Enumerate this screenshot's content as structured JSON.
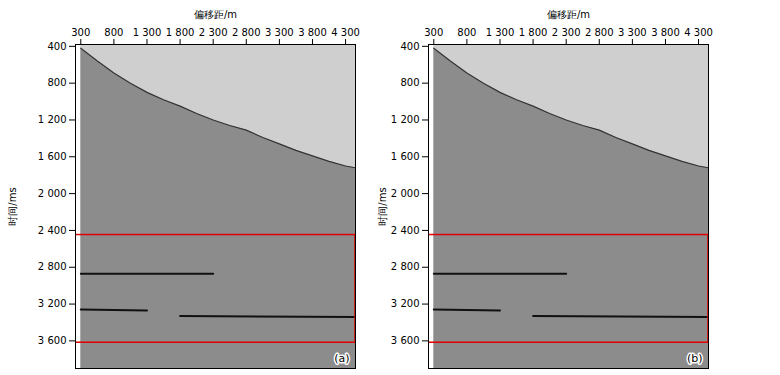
{
  "chart_data": [
    {
      "type": "area",
      "annotation": "(a)",
      "xlabel": "偏移距/m",
      "ylabel": "时间/ms",
      "xlim": [
        220,
        4450
      ],
      "ylim": [
        380,
        3900
      ],
      "xticks": [
        300,
        800,
        {
          "value": 1300,
          "label": "1 300"
        },
        {
          "value": 1800,
          "label": "1 800"
        },
        {
          "value": 2300,
          "label": "2 300"
        },
        {
          "value": 2800,
          "label": "2 800"
        },
        {
          "value": 3300,
          "label": "3 300"
        },
        {
          "value": 3800,
          "label": "3 800"
        },
        {
          "value": 4300,
          "label": "4 300"
        }
      ],
      "yticks": [
        400,
        800,
        {
          "value": 1200,
          "label": "1 200"
        },
        {
          "value": 1600,
          "label": "1 600"
        },
        {
          "value": 2000,
          "label": "2 000"
        },
        {
          "value": 2400,
          "label": "2 400"
        },
        {
          "value": 2800,
          "label": "2 800"
        },
        {
          "value": 3200,
          "label": "3 200"
        },
        {
          "value": 3600,
          "label": "3 600"
        }
      ],
      "x": [
        300,
        550,
        800,
        1050,
        1300,
        1550,
        1800,
        2050,
        2300,
        2550,
        2800,
        3050,
        3300,
        3550,
        3800,
        4050,
        4300,
        4450
      ],
      "values": [
        420,
        560,
        690,
        800,
        900,
        980,
        1050,
        1130,
        1200,
        1260,
        1310,
        1390,
        1460,
        1530,
        1590,
        1650,
        1700,
        1720
      ],
      "color": "#8c8c8c",
      "events": [
        {
          "x": [
            300,
            2300
          ],
          "values": [
            2870,
            2870
          ]
        },
        {
          "x": [
            1800,
            4450
          ],
          "values": [
            3330,
            3340
          ]
        },
        {
          "x": [
            300,
            1300
          ],
          "values": [
            3260,
            3270
          ]
        }
      ],
      "highlight_box": {
        "xlim": [
          220,
          4450
        ],
        "ylim": [
          2450,
          3620
        ],
        "color": "#e00000"
      }
    },
    {
      "type": "area",
      "annotation": "(b)",
      "xlabel": "偏移距/m",
      "ylabel": "时间/ms",
      "xlim": [
        220,
        4450
      ],
      "ylim": [
        380,
        3900
      ],
      "xticks": [
        300,
        800,
        {
          "value": 1300,
          "label": "1 300"
        },
        {
          "value": 1800,
          "label": "1 800"
        },
        {
          "value": 2300,
          "label": "2 300"
        },
        {
          "value": 2800,
          "label": "2 800"
        },
        {
          "value": 3300,
          "label": "3 300"
        },
        {
          "value": 3800,
          "label": "3 800"
        },
        {
          "value": 4300,
          "label": "4 300"
        }
      ],
      "yticks": [
        400,
        800,
        {
          "value": 1200,
          "label": "1 200"
        },
        {
          "value": 1600,
          "label": "1 600"
        },
        {
          "value": 2000,
          "label": "2 000"
        },
        {
          "value": 2400,
          "label": "2 400"
        },
        {
          "value": 2800,
          "label": "2 800"
        },
        {
          "value": 3200,
          "label": "3 200"
        },
        {
          "value": 3600,
          "label": "3 600"
        }
      ],
      "x": [
        300,
        550,
        800,
        1050,
        1300,
        1550,
        1800,
        2050,
        2300,
        2550,
        2800,
        3050,
        3300,
        3550,
        3800,
        4050,
        4300,
        4450
      ],
      "values": [
        420,
        560,
        690,
        800,
        900,
        980,
        1050,
        1130,
        1200,
        1260,
        1310,
        1390,
        1460,
        1530,
        1590,
        1650,
        1700,
        1720
      ],
      "color": "#8c8c8c",
      "events": [
        {
          "x": [
            300,
            2300
          ],
          "values": [
            2870,
            2870
          ]
        },
        {
          "x": [
            1800,
            4450
          ],
          "values": [
            3330,
            3340
          ]
        },
        {
          "x": [
            300,
            1300
          ],
          "values": [
            3260,
            3270
          ]
        }
      ],
      "highlight_box": {
        "xlim": [
          220,
          4450
        ],
        "ylim": [
          2450,
          3620
        ],
        "color": "#e00000"
      }
    }
  ]
}
